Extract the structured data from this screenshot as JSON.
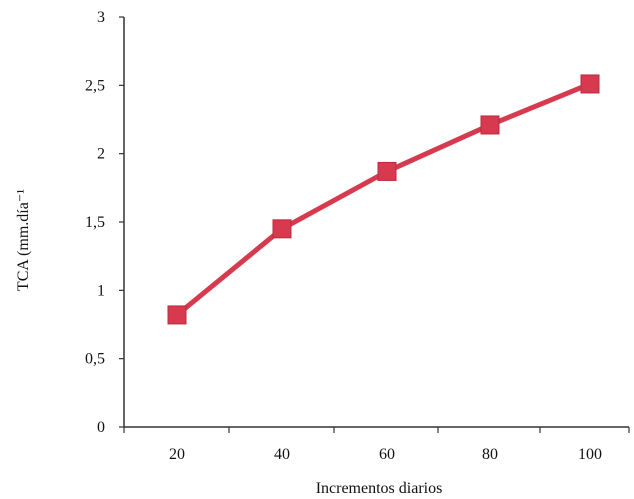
{
  "chart_data": {
    "type": "line",
    "title": "",
    "xlabel": "Incrementos diarios",
    "ylabel": "TCA (mm.día⁻¹",
    "x": [
      20,
      40,
      60,
      80,
      100
    ],
    "x_tick_labels": [
      "20",
      "40",
      "60",
      "80",
      "100"
    ],
    "y_tick_labels": [
      "0",
      "0,5",
      "1",
      "1,5",
      "2",
      "2,5",
      "3"
    ],
    "y_ticks": [
      0,
      0.5,
      1,
      1.5,
      2,
      2.5,
      3
    ],
    "ylim": [
      0,
      3
    ],
    "grid": false,
    "legend": "none",
    "series": [
      {
        "values": [
          0.82,
          1.45,
          1.87,
          2.21,
          2.51
        ],
        "color": "#d73a4e",
        "marker": "square"
      }
    ]
  }
}
